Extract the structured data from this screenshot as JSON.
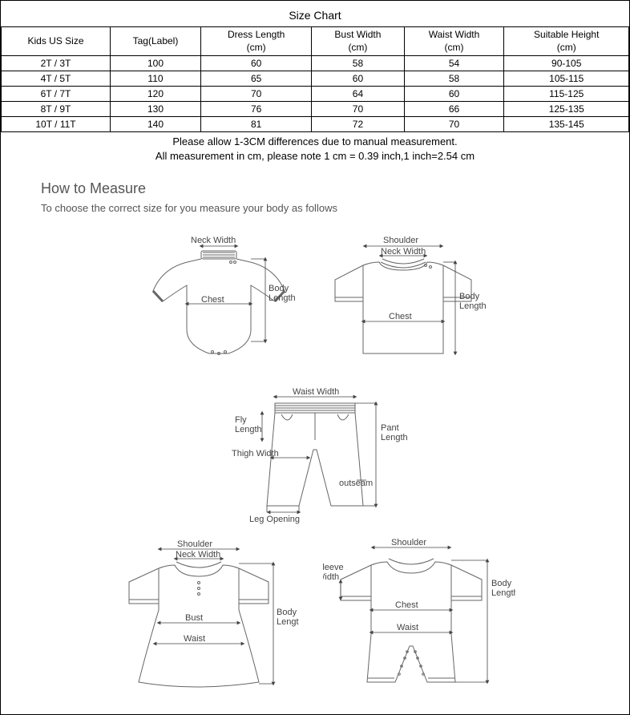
{
  "chart": {
    "title": "Size Chart",
    "columns": [
      "Kids US Size",
      "Tag(Label)",
      "Dress Length\n(cm)",
      "Bust Width\n(cm)",
      "Waist Width\n(cm)",
      "Suitable Height\n(cm)"
    ],
    "rows": [
      [
        "2T / 3T",
        "100",
        "60",
        "58",
        "54",
        "90-105"
      ],
      [
        "4T / 5T",
        "110",
        "65",
        "60",
        "58",
        "105-115"
      ],
      [
        "6T / 7T",
        "120",
        "70",
        "64",
        "60",
        "115-125"
      ],
      [
        "8T / 9T",
        "130",
        "76",
        "70",
        "66",
        "125-135"
      ],
      [
        "10T / 11T",
        "140",
        "81",
        "72",
        "70",
        "135-145"
      ]
    ],
    "note1": "Please allow 1-3CM differences due to manual measurement.",
    "note2": "All measurement in cm, please note 1 cm = 0.39 inch,1 inch=2.54 cm"
  },
  "howToMeasure": {
    "title": "How to Measure",
    "subtitle": "To choose the correct size for you measure your body as follows"
  },
  "diagrams": {
    "bodysuit": {
      "neckWidth": "Neck Width",
      "bodyLength": "Body\nLength",
      "chest": "Chest"
    },
    "shirt": {
      "shoulder": "Shoulder",
      "neckWidth": "Neck Width",
      "bodyLength": "Body\nLength",
      "chest": "Chest"
    },
    "pants": {
      "waistWidth": "Waist Width",
      "flyLength": "Fly\nLength",
      "pantLength": "Pant\nLength",
      "thighWidth": "Thigh Width",
      "legOpening": "Leg Opening",
      "outseam": "outseam"
    },
    "dress": {
      "shoulder": "Shoulder",
      "neckWidth": "Neck Width",
      "bust": "Bust",
      "waist": "Waist",
      "bodyLength": "Body\nLength"
    },
    "romper": {
      "shoulder": "Shoulder",
      "sleeveWidth": "Sleeve\nWidth",
      "chest": "Chest",
      "waist": "Waist",
      "bodyLength": "Body\nLength"
    }
  },
  "style": {
    "stroke": "#666666",
    "strokeWidth": 1,
    "arrowStroke": "#444444",
    "labelColor": "#444444",
    "background": "#ffffff"
  }
}
